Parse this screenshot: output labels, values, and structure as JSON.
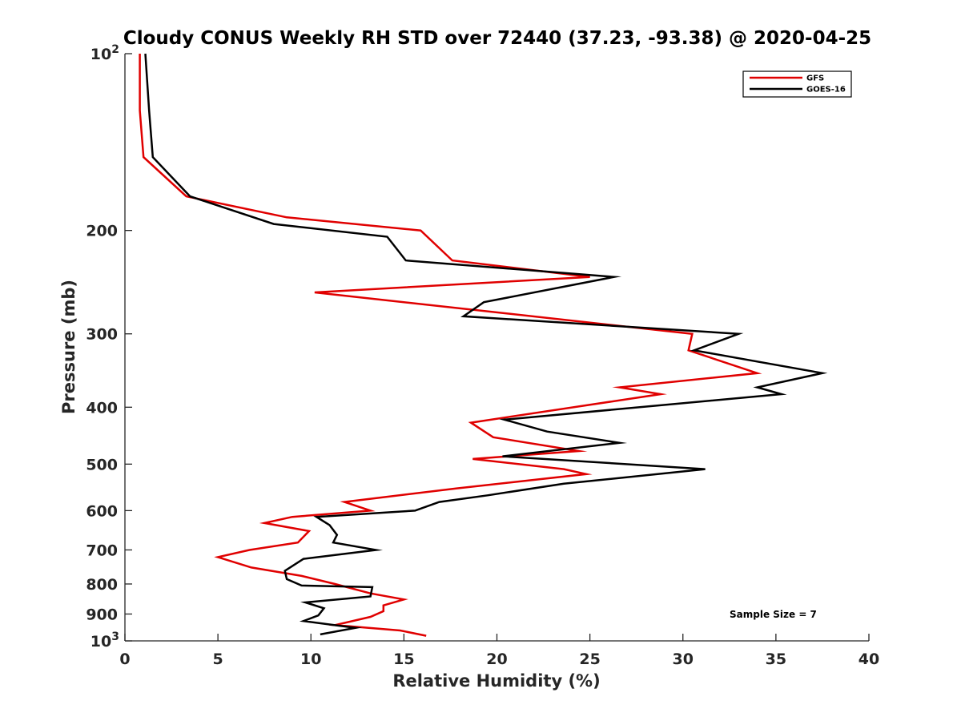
{
  "chart_data": {
    "type": "line",
    "title": "Cloudy CONUS Weekly RH STD over 72440 (37.23, -93.38) @ 2020-04-25",
    "xlabel": "Relative Humidity (%)",
    "ylabel": "Pressure (mb)",
    "xlim": [
      0,
      40
    ],
    "ylim": [
      100,
      1000
    ],
    "y_scale": "log",
    "y_reversed": true,
    "grid": false,
    "xticks": [
      0,
      5,
      10,
      15,
      20,
      25,
      30,
      35,
      40
    ],
    "yticks": [
      100,
      200,
      300,
      400,
      500,
      600,
      700,
      800,
      900,
      1000
    ],
    "ytick_labels": [
      {
        "base": "10",
        "exp": "2"
      },
      {
        "text": "200"
      },
      {
        "text": "300"
      },
      {
        "text": "400"
      },
      {
        "text": "500"
      },
      {
        "text": "600"
      },
      {
        "text": "700"
      },
      {
        "text": "800"
      },
      {
        "text": "900"
      },
      {
        "base": "10",
        "exp": "3"
      }
    ],
    "legend_position": "top-right",
    "annotation": "Sample Size = 7",
    "series": [
      {
        "name": "GFS",
        "color": "#e00000",
        "points": [
          [
            0.8,
            100
          ],
          [
            0.8,
            125
          ],
          [
            1.0,
            150
          ],
          [
            3.3,
            175
          ],
          [
            8.7,
            190
          ],
          [
            15.9,
            200
          ],
          [
            17.6,
            225
          ],
          [
            25.0,
            240
          ],
          [
            10.2,
            255
          ],
          [
            30.5,
            300
          ],
          [
            30.3,
            320
          ],
          [
            34.0,
            350
          ],
          [
            26.6,
            370
          ],
          [
            28.8,
            380
          ],
          [
            18.6,
            425
          ],
          [
            19.8,
            450
          ],
          [
            24.4,
            475
          ],
          [
            18.7,
            490
          ],
          [
            23.6,
            510
          ],
          [
            24.8,
            520
          ],
          [
            17.8,
            550
          ],
          [
            11.8,
            580
          ],
          [
            13.2,
            600
          ],
          [
            9.0,
            615
          ],
          [
            7.5,
            630
          ],
          [
            9.9,
            650
          ],
          [
            9.3,
            680
          ],
          [
            6.7,
            700
          ],
          [
            5.0,
            720
          ],
          [
            6.8,
            750
          ],
          [
            9.5,
            775
          ],
          [
            11.3,
            800
          ],
          [
            13.2,
            830
          ],
          [
            15.0,
            850
          ],
          [
            13.9,
            870
          ],
          [
            13.9,
            890
          ],
          [
            13.2,
            910
          ],
          [
            11.3,
            940
          ],
          [
            14.8,
            960
          ],
          [
            16.2,
            980
          ]
        ]
      },
      {
        "name": "GOES-16",
        "color": "#000000",
        "points": [
          [
            1.1,
            100
          ],
          [
            1.3,
            125
          ],
          [
            1.5,
            150
          ],
          [
            3.5,
            175
          ],
          [
            8.0,
            195
          ],
          [
            14.1,
            205
          ],
          [
            15.1,
            225
          ],
          [
            26.3,
            240
          ],
          [
            19.3,
            265
          ],
          [
            18.2,
            280
          ],
          [
            33.0,
            300
          ],
          [
            30.6,
            320
          ],
          [
            37.5,
            350
          ],
          [
            34.0,
            370
          ],
          [
            35.3,
            380
          ],
          [
            20.4,
            420
          ],
          [
            22.7,
            440
          ],
          [
            26.6,
            460
          ],
          [
            20.3,
            485
          ],
          [
            31.2,
            510
          ],
          [
            23.6,
            540
          ],
          [
            19.5,
            565
          ],
          [
            16.9,
            580
          ],
          [
            15.6,
            600
          ],
          [
            10.3,
            615
          ],
          [
            11.0,
            635
          ],
          [
            11.4,
            660
          ],
          [
            11.2,
            680
          ],
          [
            13.5,
            700
          ],
          [
            9.6,
            725
          ],
          [
            8.6,
            760
          ],
          [
            8.7,
            785
          ],
          [
            9.5,
            805
          ],
          [
            13.3,
            810
          ],
          [
            13.2,
            840
          ],
          [
            9.7,
            860
          ],
          [
            10.7,
            880
          ],
          [
            10.4,
            905
          ],
          [
            9.6,
            925
          ],
          [
            12.4,
            950
          ],
          [
            10.5,
            975
          ]
        ]
      }
    ]
  }
}
